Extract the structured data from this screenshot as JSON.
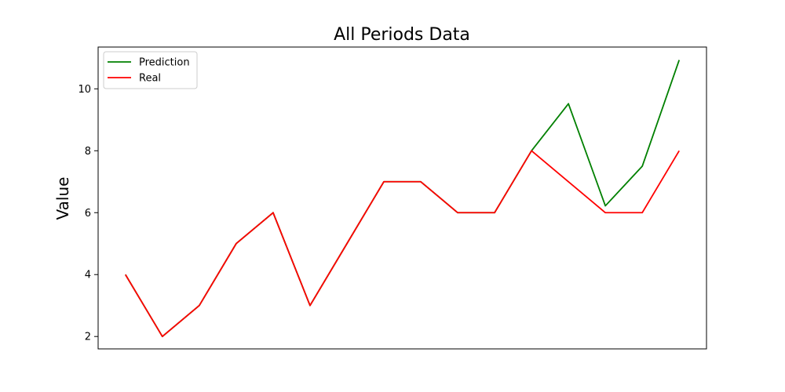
{
  "chart_data": {
    "type": "line",
    "title": "All Periods Data",
    "xlabel": "",
    "ylabel": "Value",
    "x": [
      0,
      1,
      2,
      3,
      4,
      5,
      6,
      7,
      8,
      9,
      10,
      11,
      12,
      13,
      14,
      15
    ],
    "series": [
      {
        "name": "Prediction",
        "color": "#008000",
        "values": [
          4,
          2,
          3,
          5,
          6,
          3,
          5,
          7,
          7,
          6,
          6,
          8,
          9.52,
          6.22,
          7.5,
          10.93
        ]
      },
      {
        "name": "Real",
        "color": "#ff0000",
        "values": [
          4,
          2,
          3,
          5,
          6,
          3,
          5,
          7,
          7,
          6,
          6,
          8,
          7,
          6,
          6,
          8
        ]
      }
    ],
    "xlim": [
      -0.74,
      15.74
    ],
    "ylim": [
      1.6,
      11.35
    ],
    "yticks": [
      "2",
      "4",
      "6",
      "8",
      "10"
    ],
    "xticks": [],
    "grid": false,
    "legend_position": "top-left"
  }
}
